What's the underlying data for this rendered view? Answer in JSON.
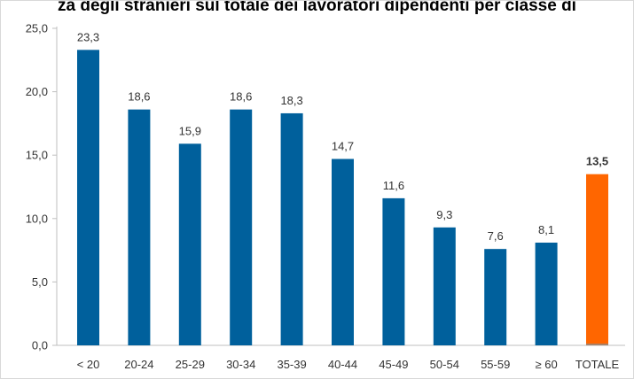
{
  "chart_data": {
    "type": "bar",
    "title": "za degli stranieri sul totale dei lavoratori dipendenti per classe di",
    "categories": [
      "< 20",
      "20-24",
      "25-29",
      "30-34",
      "35-39",
      "40-44",
      "45-49",
      "50-54",
      "55-59",
      "≥ 60",
      "TOTALE"
    ],
    "values": [
      23.3,
      18.6,
      15.9,
      18.6,
      18.3,
      14.7,
      11.6,
      9.3,
      7.6,
      8.1,
      13.5
    ],
    "value_labels": [
      "23,3",
      "18,6",
      "15,9",
      "18,6",
      "18,3",
      "14,7",
      "11,6",
      "9,3",
      "7,6",
      "8,1",
      "13,5"
    ],
    "highlight_index": 10,
    "y_ticks": [
      0,
      5,
      10,
      15,
      20,
      25
    ],
    "y_tick_labels": [
      "0,0",
      "5,0",
      "10,0",
      "15,0",
      "20,0",
      "25,0"
    ],
    "ylim": [
      0,
      25
    ],
    "xlabel": "",
    "ylabel": "",
    "grid": false,
    "legend": "none",
    "colors": {
      "bar": "#00609C",
      "highlight": "#FF6600",
      "highlight_baseline": "#8C8C8C",
      "axis": "#BFBFBF",
      "text": "#333333"
    }
  }
}
